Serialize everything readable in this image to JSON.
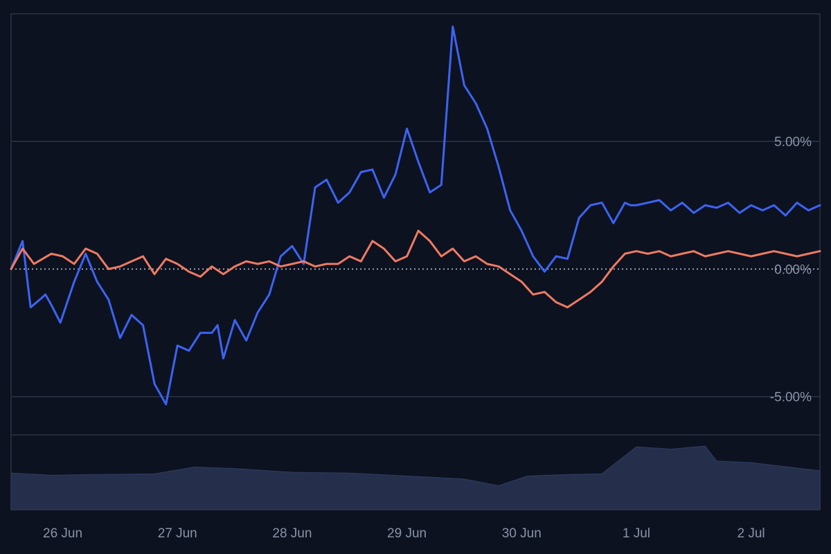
{
  "chart_data": {
    "type": "line",
    "x_ticks": [
      "26 Jun",
      "27 Jun",
      "28 Jun",
      "29 Jun",
      "30 Jun",
      "1 Jul",
      "2 Jul"
    ],
    "y_ticks": [
      "5.00%",
      "0.00%",
      "-5.00%"
    ],
    "y_tick_values": [
      5,
      0,
      -5
    ],
    "ylim": [
      -6.5,
      10
    ],
    "x_range_days": [
      -0.45,
      6.6
    ],
    "grid": true,
    "baseline": 0,
    "colors": {
      "background": "#0c1220",
      "grid": "#2b3446",
      "series_blue": "#3d63f2",
      "series_orange": "#f07a62",
      "volume": "#252f4c",
      "baseline": "#c9ced8"
    },
    "series": [
      {
        "color": "#3d63f2",
        "x": [
          -0.45,
          -0.35,
          -0.28,
          -0.2,
          -0.15,
          -0.1,
          -0.02,
          0.1,
          0.2,
          0.3,
          0.4,
          0.5,
          0.6,
          0.7,
          0.8,
          0.9,
          1.0,
          1.1,
          1.2,
          1.3,
          1.35,
          1.4,
          1.5,
          1.6,
          1.7,
          1.8,
          1.9,
          2.0,
          2.1,
          2.2,
          2.3,
          2.4,
          2.5,
          2.6,
          2.7,
          2.8,
          2.9,
          3.0,
          3.1,
          3.2,
          3.3,
          3.4,
          3.5,
          3.6,
          3.7,
          3.8,
          3.9,
          4.0,
          4.1,
          4.2,
          4.3,
          4.4,
          4.5,
          4.6,
          4.7,
          4.8,
          4.9,
          4.95,
          5.0,
          5.1,
          5.2,
          5.3,
          5.4,
          5.5,
          5.6,
          5.7,
          5.8,
          5.9,
          6.0,
          6.1,
          6.2,
          6.3,
          6.4,
          6.5,
          6.6
        ],
        "values": [
          0.0,
          1.1,
          -1.5,
          -1.2,
          -1.0,
          -1.4,
          -2.1,
          -0.5,
          0.6,
          -0.5,
          -1.2,
          -2.7,
          -1.8,
          -2.2,
          -4.5,
          -5.3,
          -3.0,
          -3.2,
          -2.5,
          -2.5,
          -2.2,
          -3.5,
          -2.0,
          -2.8,
          -1.7,
          -1.0,
          0.5,
          0.9,
          0.2,
          3.2,
          3.5,
          2.6,
          3.0,
          3.8,
          3.9,
          2.8,
          3.7,
          5.5,
          4.2,
          3.0,
          3.3,
          9.5,
          7.2,
          6.5,
          5.5,
          4.0,
          2.3,
          1.5,
          0.5,
          -0.1,
          0.5,
          0.4,
          2.0,
          2.5,
          2.6,
          1.8,
          2.6,
          2.5,
          2.5,
          2.6,
          2.7,
          2.3,
          2.6,
          2.2,
          2.5,
          2.4,
          2.6,
          2.2,
          2.5,
          2.3,
          2.5,
          2.1,
          2.6,
          2.3,
          2.5
        ]
      },
      {
        "color": "#f07a62",
        "x": [
          -0.45,
          -0.35,
          -0.25,
          -0.1,
          0.0,
          0.1,
          0.2,
          0.3,
          0.4,
          0.5,
          0.6,
          0.7,
          0.8,
          0.9,
          1.0,
          1.1,
          1.2,
          1.3,
          1.4,
          1.5,
          1.6,
          1.7,
          1.8,
          1.9,
          2.0,
          2.1,
          2.2,
          2.3,
          2.4,
          2.5,
          2.6,
          2.7,
          2.8,
          2.9,
          3.0,
          3.1,
          3.2,
          3.3,
          3.4,
          3.5,
          3.6,
          3.7,
          3.8,
          3.9,
          4.0,
          4.1,
          4.2,
          4.3,
          4.4,
          4.5,
          4.6,
          4.7,
          4.8,
          4.9,
          5.0,
          5.1,
          5.2,
          5.3,
          5.4,
          5.5,
          5.6,
          5.7,
          5.8,
          5.9,
          6.0,
          6.1,
          6.2,
          6.3,
          6.4,
          6.5,
          6.6
        ],
        "values": [
          0.0,
          0.8,
          0.2,
          0.6,
          0.5,
          0.2,
          0.8,
          0.6,
          0.0,
          0.1,
          0.3,
          0.5,
          -0.2,
          0.4,
          0.2,
          -0.1,
          -0.3,
          0.1,
          -0.2,
          0.1,
          0.3,
          0.2,
          0.3,
          0.1,
          0.2,
          0.3,
          0.1,
          0.2,
          0.2,
          0.5,
          0.3,
          1.1,
          0.8,
          0.3,
          0.5,
          1.5,
          1.1,
          0.5,
          0.8,
          0.3,
          0.5,
          0.2,
          0.1,
          -0.2,
          -0.5,
          -1.0,
          -0.9,
          -1.3,
          -1.5,
          -1.2,
          -0.9,
          -0.5,
          0.1,
          0.6,
          0.7,
          0.6,
          0.7,
          0.5,
          0.6,
          0.7,
          0.5,
          0.6,
          0.7,
          0.6,
          0.5,
          0.6,
          0.7,
          0.6,
          0.5,
          0.6,
          0.7
        ]
      }
    ],
    "volume": {
      "x": [
        -0.45,
        -0.1,
        0.3,
        0.8,
        1.15,
        1.5,
        2.0,
        2.5,
        3.0,
        3.5,
        3.8,
        4.05,
        4.4,
        4.7,
        5.0,
        5.3,
        5.6,
        5.7,
        6.0,
        6.6
      ],
      "values": [
        0.49,
        0.46,
        0.47,
        0.48,
        0.57,
        0.55,
        0.5,
        0.49,
        0.45,
        0.41,
        0.32,
        0.45,
        0.47,
        0.48,
        0.84,
        0.81,
        0.85,
        0.65,
        0.63,
        0.52
      ]
    }
  }
}
